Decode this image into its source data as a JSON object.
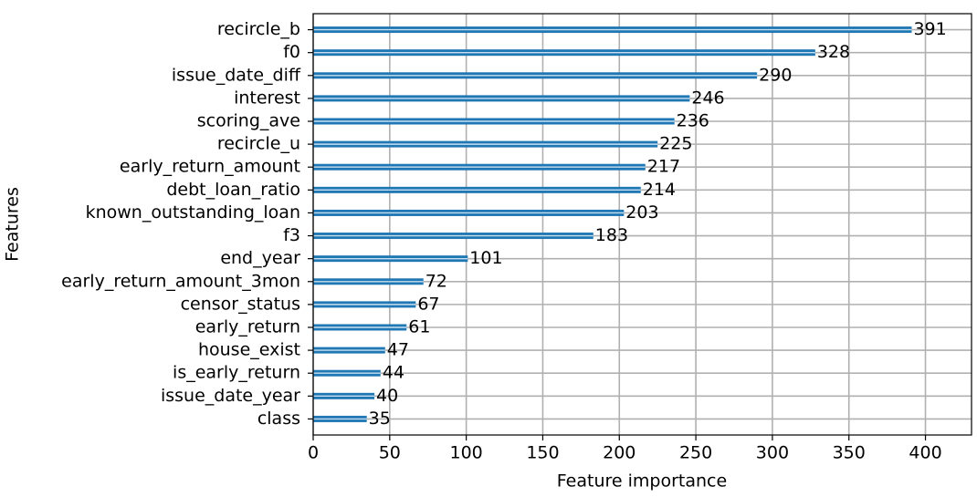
{
  "chart_data": {
    "type": "bar",
    "orientation": "horizontal",
    "xlabel": "Feature importance",
    "ylabel": "Features",
    "categories": [
      "recircle_b",
      "f0",
      "issue_date_diff",
      "interest",
      "scoring_ave",
      "recircle_u",
      "early_return_amount",
      "debt_loan_ratio",
      "known_outstanding_loan",
      "f3",
      "end_year",
      "early_return_amount_3mon",
      "censor_status",
      "early_return",
      "house_exist",
      "is_early_return",
      "issue_date_year",
      "class"
    ],
    "values": [
      391,
      328,
      290,
      246,
      236,
      225,
      217,
      214,
      203,
      183,
      101,
      72,
      67,
      61,
      47,
      44,
      40,
      35
    ],
    "color": "#1f77b4",
    "xlim": [
      0,
      430.1
    ],
    "xticks": [
      0,
      50,
      100,
      150,
      200,
      250,
      300,
      350,
      400
    ],
    "grid": true
  }
}
